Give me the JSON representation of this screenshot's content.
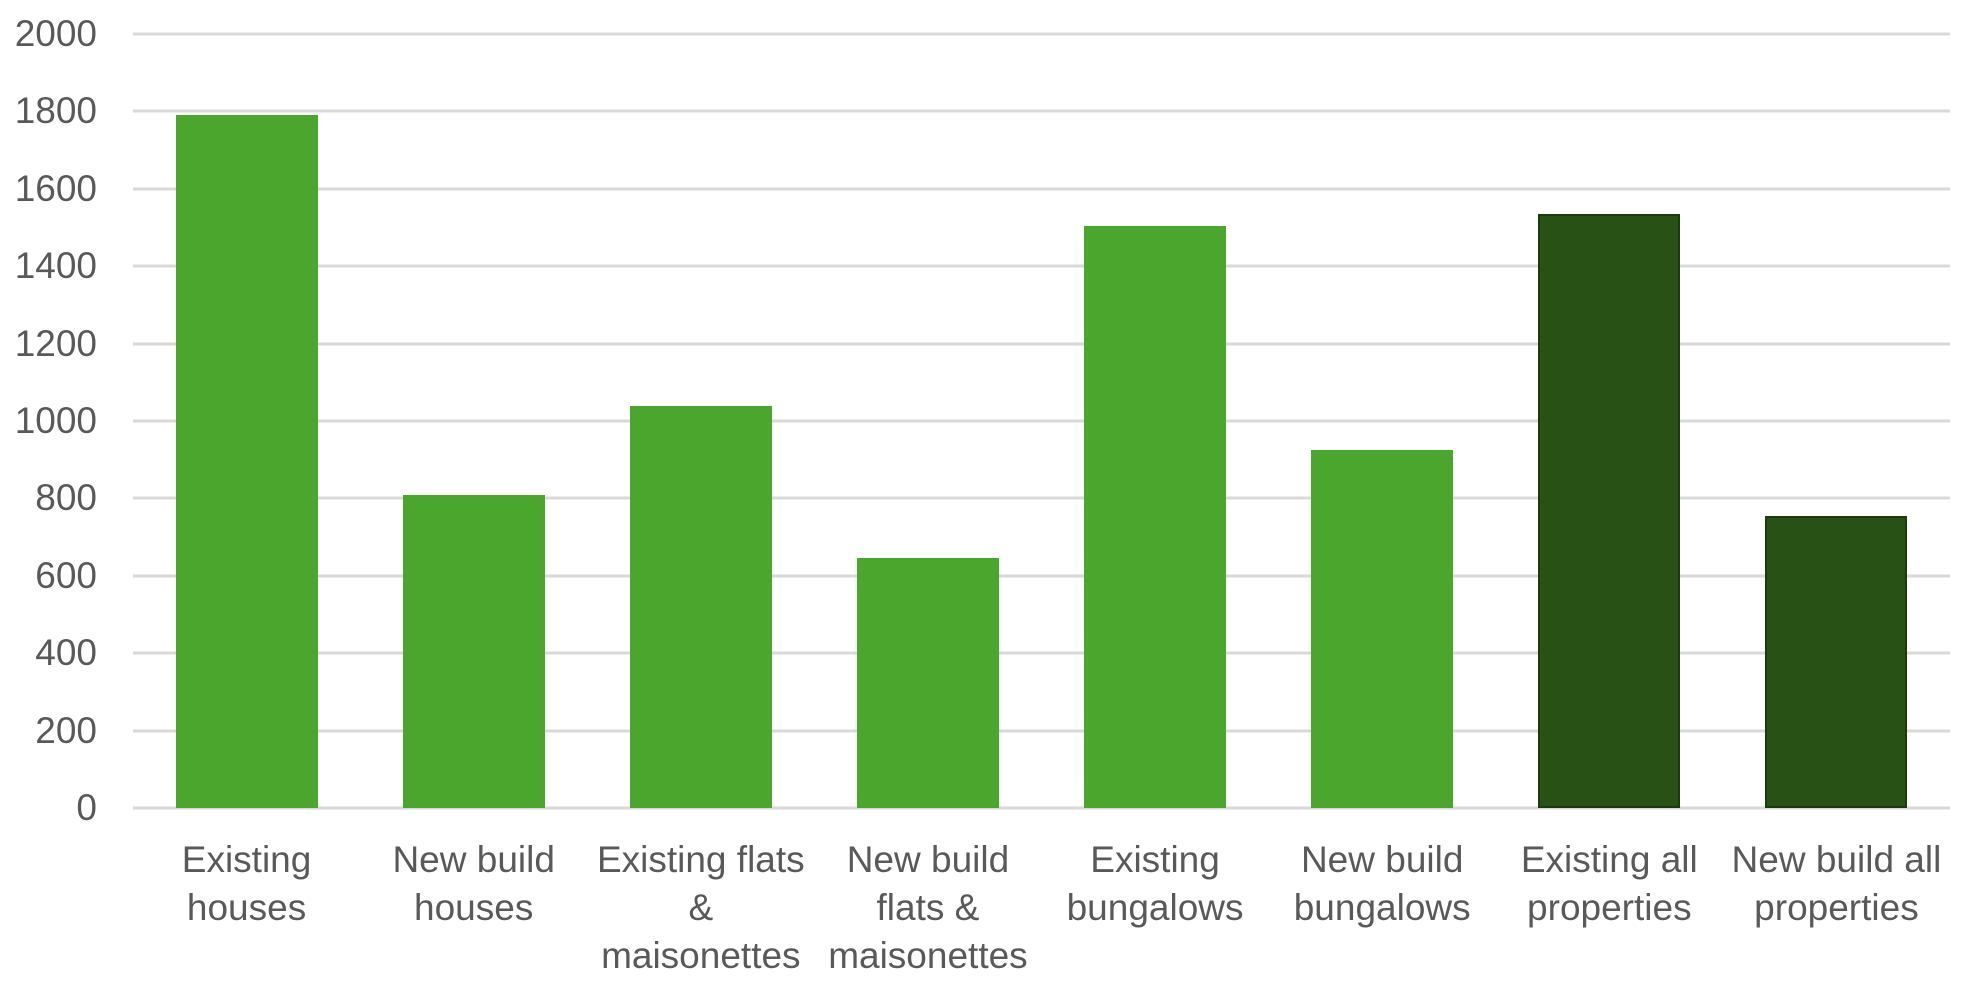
{
  "chart_data": {
    "type": "bar",
    "title": "",
    "xlabel": "",
    "ylabel": "",
    "categories": [
      "Existing houses",
      "New build houses",
      "Existing flats & maisonettes",
      "New build flats & maisonettes",
      "Existing bungalows",
      "New build bungalows",
      "Existing all properties",
      "New build all properties"
    ],
    "category_lines": [
      [
        "Existing",
        "houses"
      ],
      [
        "New build",
        "houses"
      ],
      [
        "Existing flats",
        "& maisonettes"
      ],
      [
        "New build",
        "flats &",
        "maisonettes"
      ],
      [
        "Existing",
        "bungalows"
      ],
      [
        "New build",
        "bungalows"
      ],
      [
        "Existing all",
        "properties"
      ],
      [
        "New build all",
        "properties"
      ]
    ],
    "values": [
      1790,
      810,
      1040,
      645,
      1505,
      925,
      1535,
      755
    ],
    "bar_colors": [
      "#4BA62E",
      "#4BA62E",
      "#4BA62E",
      "#4BA62E",
      "#4BA62E",
      "#4BA62E",
      "#275115",
      "#275115"
    ],
    "bar_border_colors": [
      "none",
      "none",
      "none",
      "none",
      "none",
      "none",
      "#1D3A0C",
      "#1D3A0C"
    ],
    "ylim": [
      0,
      2000
    ],
    "ytick_step": 200,
    "yticks": [
      0,
      200,
      400,
      600,
      800,
      1000,
      1200,
      1400,
      1600,
      1800,
      2000
    ],
    "grid": true,
    "legend": false,
    "colors": {
      "grid": "#D9D9D9",
      "axis_text": "#595959",
      "background": "#FFFFFF",
      "bar_light": "#4BA62E",
      "bar_dark": "#275115"
    }
  }
}
